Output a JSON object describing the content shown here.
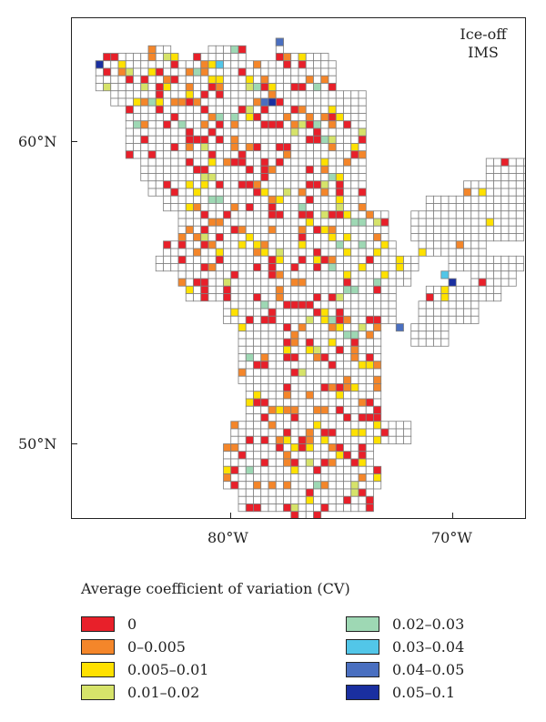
{
  "map": {
    "label_line1": "Ice-off",
    "label_line2": "IMS",
    "lat_labels": [
      "60°N",
      "50°N"
    ],
    "lon_labels": [
      "80°W",
      "70°W"
    ]
  },
  "legend": {
    "title": "Average coefficient of variation (CV)",
    "items": [
      {
        "label": "0",
        "color": "#e8202a"
      },
      {
        "label": "0–0.005",
        "color": "#f4862a"
      },
      {
        "label": "0.005–0.01",
        "color": "#ffe100"
      },
      {
        "label": "0.01–0.02",
        "color": "#d6e36a"
      },
      {
        "label": "0.02–0.03",
        "color": "#9ed8b4"
      },
      {
        "label": "0.03–0.04",
        "color": "#52c6e8"
      },
      {
        "label": "0.04–0.05",
        "color": "#4a6fc0"
      },
      {
        "label": "0.05–0.1",
        "color": "#1a2fa0"
      }
    ]
  },
  "colors": {
    "empty_cell_fill": "#ffffff",
    "cell_outline": "#7f7f7f",
    "frame": "#222222"
  }
}
